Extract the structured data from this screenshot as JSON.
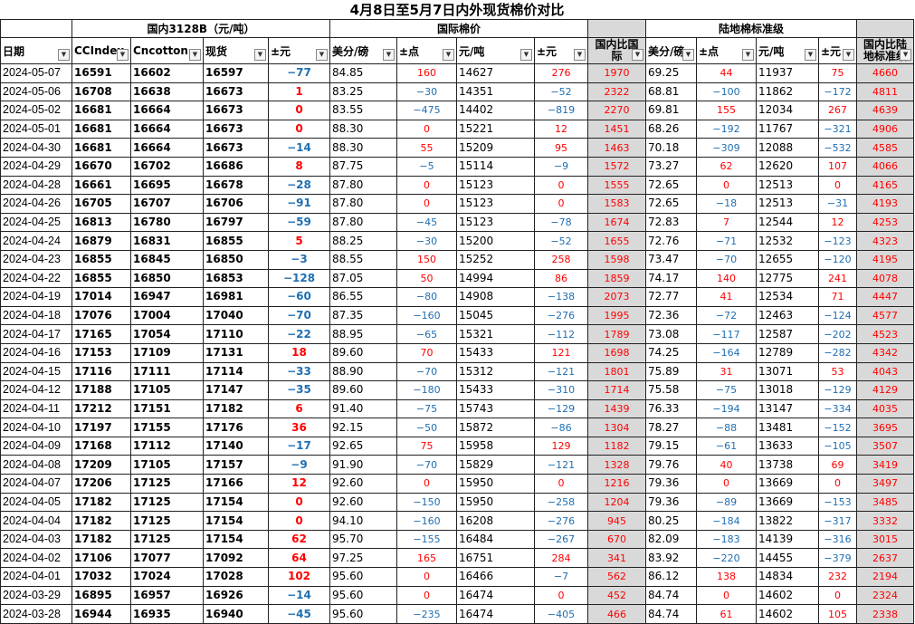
{
  "title": "4月8日至5月7日内外现货棉价对比",
  "groups": {
    "domestic": "国内3128B（元/吨）",
    "intl": "国际棉价",
    "land": "陆地棉标准级"
  },
  "columns": [
    "日期",
    "CCIndex",
    "Cncotton",
    "现货",
    "±元",
    "美分/磅",
    "±点",
    "元/吨",
    "±元",
    "国内比国际",
    "美分/磅",
    "±点",
    "元/吨",
    "±元",
    "国内比陆地标准级"
  ],
  "colors": {
    "up": "#ff0000",
    "down": "#1f6fb2",
    "grey": "#d9d9d9"
  },
  "rows": [
    [
      "2024-05-07",
      "16591",
      "16602",
      "16597",
      "-77",
      "84.85",
      "160",
      "14627",
      "276",
      "1970",
      "69.25",
      "44",
      "11937",
      "75",
      "4660"
    ],
    [
      "2024-05-06",
      "16708",
      "16638",
      "16673",
      "1",
      "83.25",
      "-30",
      "14351",
      "-52",
      "2322",
      "68.81",
      "-100",
      "11862",
      "-172",
      "4811"
    ],
    [
      "2024-05-02",
      "16681",
      "16664",
      "16673",
      "0",
      "83.55",
      "-475",
      "14402",
      "-819",
      "2270",
      "69.81",
      "155",
      "12034",
      "267",
      "4639"
    ],
    [
      "2024-05-01",
      "16681",
      "16664",
      "16673",
      "0",
      "88.30",
      "0",
      "15221",
      "12",
      "1451",
      "68.26",
      "-192",
      "11767",
      "-321",
      "4906"
    ],
    [
      "2024-04-30",
      "16681",
      "16664",
      "16673",
      "-14",
      "88.30",
      "55",
      "15209",
      "95",
      "1463",
      "70.18",
      "-309",
      "12088",
      "-532",
      "4585"
    ],
    [
      "2024-04-29",
      "16670",
      "16702",
      "16686",
      "8",
      "87.75",
      "-5",
      "15114",
      "-9",
      "1572",
      "73.27",
      "62",
      "12620",
      "107",
      "4066"
    ],
    [
      "2024-04-28",
      "16661",
      "16695",
      "16678",
      "-28",
      "87.80",
      "0",
      "15123",
      "0",
      "1555",
      "72.65",
      "0",
      "12513",
      "0",
      "4165"
    ],
    [
      "2024-04-26",
      "16705",
      "16707",
      "16706",
      "-91",
      "87.80",
      "0",
      "15123",
      "0",
      "1583",
      "72.65",
      "-18",
      "12513",
      "-31",
      "4193"
    ],
    [
      "2024-04-25",
      "16813",
      "16780",
      "16797",
      "-59",
      "87.80",
      "-45",
      "15123",
      "-78",
      "1674",
      "72.83",
      "7",
      "12544",
      "12",
      "4253"
    ],
    [
      "2024-04-24",
      "16879",
      "16831",
      "16855",
      "5",
      "88.25",
      "-30",
      "15200",
      "-52",
      "1655",
      "72.76",
      "-71",
      "12532",
      "-123",
      "4323"
    ],
    [
      "2024-04-23",
      "16855",
      "16845",
      "16850",
      "-3",
      "88.55",
      "150",
      "15252",
      "258",
      "1598",
      "73.47",
      "-70",
      "12655",
      "-120",
      "4195"
    ],
    [
      "2024-04-22",
      "16855",
      "16850",
      "16853",
      "-128",
      "87.05",
      "50",
      "14994",
      "86",
      "1859",
      "74.17",
      "140",
      "12775",
      "241",
      "4078"
    ],
    [
      "2024-04-19",
      "17014",
      "16947",
      "16981",
      "-60",
      "86.55",
      "-80",
      "14908",
      "-138",
      "2073",
      "72.77",
      "41",
      "12534",
      "71",
      "4447"
    ],
    [
      "2024-04-18",
      "17076",
      "17004",
      "17040",
      "-70",
      "87.35",
      "-160",
      "15045",
      "-276",
      "1995",
      "72.36",
      "-72",
      "12463",
      "-124",
      "4577"
    ],
    [
      "2024-04-17",
      "17165",
      "17054",
      "17110",
      "-22",
      "88.95",
      "-65",
      "15321",
      "-112",
      "1789",
      "73.08",
      "-117",
      "12587",
      "-202",
      "4523"
    ],
    [
      "2024-04-16",
      "17153",
      "17109",
      "17131",
      "18",
      "89.60",
      "70",
      "15433",
      "121",
      "1698",
      "74.25",
      "-164",
      "12789",
      "-282",
      "4342"
    ],
    [
      "2024-04-15",
      "17116",
      "17111",
      "17114",
      "-33",
      "88.90",
      "-70",
      "15312",
      "-121",
      "1801",
      "75.89",
      "31",
      "13071",
      "53",
      "4043"
    ],
    [
      "2024-04-12",
      "17188",
      "17105",
      "17147",
      "-35",
      "89.60",
      "-180",
      "15433",
      "-310",
      "1714",
      "75.58",
      "-75",
      "13018",
      "-129",
      "4129"
    ],
    [
      "2024-04-11",
      "17212",
      "17151",
      "17182",
      "6",
      "91.40",
      "-75",
      "15743",
      "-129",
      "1439",
      "76.33",
      "-194",
      "13147",
      "-334",
      "4035"
    ],
    [
      "2024-04-10",
      "17197",
      "17155",
      "17176",
      "36",
      "92.15",
      "-50",
      "15872",
      "-86",
      "1304",
      "78.27",
      "-88",
      "13481",
      "-152",
      "3695"
    ],
    [
      "2024-04-09",
      "17168",
      "17112",
      "17140",
      "-17",
      "92.65",
      "75",
      "15958",
      "129",
      "1182",
      "79.15",
      "-61",
      "13633",
      "-105",
      "3507"
    ],
    [
      "2024-04-08",
      "17209",
      "17105",
      "17157",
      "-9",
      "91.90",
      "-70",
      "15829",
      "-121",
      "1328",
      "79.76",
      "40",
      "13738",
      "69",
      "3419"
    ],
    [
      "2024-04-07",
      "17206",
      "17125",
      "17166",
      "12",
      "92.60",
      "0",
      "15950",
      "0",
      "1216",
      "79.36",
      "0",
      "13669",
      "0",
      "3497"
    ],
    [
      "2024-04-05",
      "17182",
      "17125",
      "17154",
      "0",
      "92.60",
      "-150",
      "15950",
      "-258",
      "1204",
      "79.36",
      "-89",
      "13669",
      "-153",
      "3485"
    ],
    [
      "2024-04-04",
      "17182",
      "17125",
      "17154",
      "0",
      "94.10",
      "-160",
      "16208",
      "-276",
      "945",
      "80.25",
      "-184",
      "13822",
      "-317",
      "3332"
    ],
    [
      "2024-04-03",
      "17182",
      "17125",
      "17154",
      "62",
      "95.70",
      "-155",
      "16484",
      "-267",
      "670",
      "82.09",
      "-183",
      "14139",
      "-316",
      "3015"
    ],
    [
      "2024-04-02",
      "17106",
      "17077",
      "17092",
      "64",
      "97.25",
      "165",
      "16751",
      "284",
      "341",
      "83.92",
      "-220",
      "14455",
      "-379",
      "2637"
    ],
    [
      "2024-04-01",
      "17032",
      "17024",
      "17028",
      "102",
      "95.60",
      "0",
      "16466",
      "-7",
      "562",
      "86.12",
      "138",
      "14834",
      "232",
      "2194"
    ],
    [
      "2024-03-29",
      "16895",
      "16957",
      "16926",
      "-14",
      "95.60",
      "0",
      "16474",
      "0",
      "452",
      "84.74",
      "0",
      "14602",
      "0",
      "2324"
    ],
    [
      "2024-03-28",
      "16944",
      "16935",
      "16940",
      "-45",
      "95.60",
      "-235",
      "16474",
      "-405",
      "466",
      "84.74",
      "61",
      "14602",
      "105",
      "2338"
    ]
  ]
}
